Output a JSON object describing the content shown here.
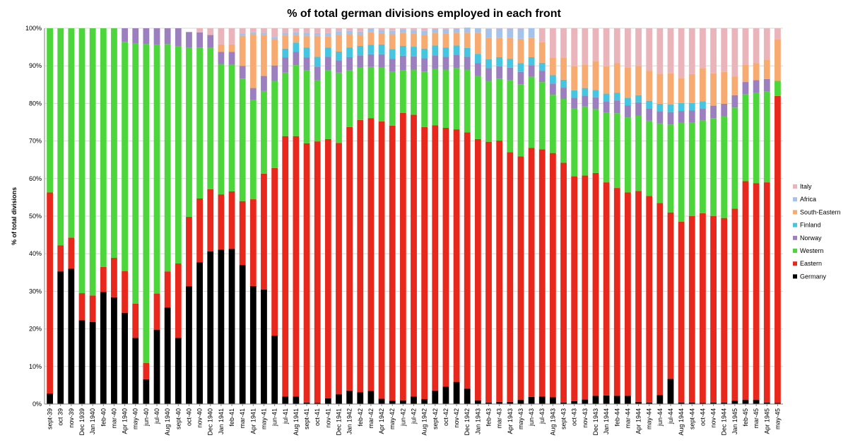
{
  "chart_data": {
    "type": "bar",
    "stacked": true,
    "normalized_percent": true,
    "title": "% of total german divisions employed in each front",
    "xlabel": "",
    "ylabel": "% of total divisions",
    "ylim": [
      0,
      100
    ],
    "yticks": [
      "0%",
      "10%",
      "20%",
      "30%",
      "40%",
      "50%",
      "60%",
      "70%",
      "80%",
      "90%",
      "100%"
    ],
    "grid": true,
    "legend_position": "right",
    "categories": [
      "sept-39",
      "oct 39",
      "nov-39",
      "Dec 1939",
      "Jan 1940",
      "feb-40",
      "mar-40",
      "Apr 1940",
      "may-40",
      "jun-40",
      "jul-40",
      "Aug 1940",
      "sept-40",
      "oct-40",
      "nov-40",
      "Dec 1940",
      "Jan 1941",
      "feb-41",
      "mar-41",
      "Apr 1941",
      "may-41",
      "jun-41",
      "jul-41",
      "Aug 1941",
      "sept-41",
      "oct-41",
      "nov-41",
      "Dec 1941",
      "Jan 1942",
      "feb-42",
      "mar-42",
      "Apr 1942",
      "may-42",
      "jun-42",
      "jul-42",
      "Aug 1942",
      "sept-42",
      "oct-42",
      "nov-42",
      "Dec 1942",
      "Jan 1943",
      "feb-43",
      "mar-43",
      "Apr 1943",
      "may-43",
      "jun-43",
      "jul-43",
      "Aug 1943",
      "sept-43",
      "oct-43",
      "nov-43",
      "Dec 1943",
      "Jan 1944",
      "feb-44",
      "mar-44",
      "Apr 1944",
      "may-44",
      "jun-44",
      "jul-44",
      "Aug 1944",
      "sept-44",
      "oct-44",
      "nov-44",
      "Dec 1944",
      "Jan 1945",
      "feb-45",
      "mar-45",
      "Apr 1945",
      "may-45"
    ],
    "series": [
      {
        "name": "Germany",
        "color": "#000000",
        "values": [
          2.8,
          35.3,
          36.0,
          22.3,
          21.8,
          29.8,
          28.4,
          24.3,
          17.6,
          6.6,
          19.8,
          25.7,
          17.6,
          31.3,
          37.7,
          40.6,
          41.1,
          41.3,
          37.0,
          31.4,
          30.5,
          18.2,
          2.0,
          2.0,
          0.4,
          0.3,
          1.5,
          2.6,
          3.6,
          3.1,
          3.5,
          1.4,
          0.9,
          1.0,
          2.0,
          1.3,
          3.6,
          4.6,
          5.9,
          4.1,
          1.0,
          0.4,
          0.6,
          0.6,
          1.1,
          1.9,
          2.0,
          1.8,
          0.4,
          0.8,
          1.2,
          2.2,
          2.3,
          2.2,
          2.2,
          0.6,
          0.4,
          2.4,
          6.7,
          0.4,
          0.4,
          0.3,
          0.4,
          0.4,
          0.9,
          1.1,
          1.1,
          0.4,
          0.3
        ]
      },
      {
        "name": "Eastern",
        "color": "#e8281c",
        "values": [
          53.5,
          6.9,
          8.3,
          7.2,
          7.1,
          6.7,
          10.5,
          11.1,
          9.1,
          4.3,
          9.6,
          9.6,
          19.8,
          18.5,
          17.0,
          16.6,
          14.7,
          15.3,
          17.0,
          23.1,
          30.8,
          44.6,
          69.3,
          69.3,
          69.0,
          69.6,
          69.0,
          66.9,
          70.1,
          72.5,
          72.6,
          73.8,
          73.2,
          76.5,
          75.0,
          72.4,
          70.6,
          68.9,
          67.2,
          68.2,
          69.5,
          69.4,
          69.5,
          66.4,
          64.8,
          66.3,
          65.8,
          65.0,
          63.8,
          59.8,
          59.6,
          59.3,
          56.7,
          55.3,
          54.1,
          56.1,
          55.0,
          51.1,
          44.3,
          48.1,
          49.6,
          50.5,
          49.6,
          49.1,
          51.1,
          58.2,
          57.7,
          58.6,
          81.7
        ]
      },
      {
        "name": "Western",
        "color": "#4cd63c",
        "values": [
          43.7,
          57.8,
          55.7,
          70.5,
          71.1,
          63.5,
          61.1,
          61.0,
          69.2,
          84.9,
          66.2,
          60.5,
          57.9,
          45.0,
          40.2,
          37.6,
          34.7,
          33.7,
          32.6,
          26.4,
          22.0,
          23.2,
          16.9,
          18.9,
          19.5,
          16.3,
          18.4,
          18.7,
          15.2,
          13.9,
          13.6,
          14.3,
          14.3,
          11.4,
          12.0,
          14.8,
          15.0,
          15.5,
          16.3,
          16.7,
          16.8,
          16.2,
          16.5,
          19.2,
          19.2,
          18.9,
          17.9,
          15.5,
          17.0,
          18.0,
          18.4,
          17.0,
          18.5,
          19.9,
          20.0,
          20.0,
          20.0,
          21.2,
          23.4,
          26.4,
          25.0,
          24.7,
          26.1,
          27.1,
          26.9,
          23.2,
          24.1,
          24.2,
          4.0
        ]
      },
      {
        "name": "Norway",
        "color": "#9c7fbe",
        "values": [
          0,
          0,
          0,
          0,
          0,
          0,
          0,
          3.6,
          4.1,
          4.2,
          4.4,
          4.2,
          4.7,
          4.2,
          4.0,
          3.4,
          3.2,
          3.4,
          3.4,
          3.2,
          4.0,
          4.1,
          4.0,
          3.5,
          3.3,
          3.6,
          3.5,
          3.3,
          3.4,
          3.3,
          3.4,
          3.6,
          3.5,
          3.8,
          3.5,
          3.5,
          3.6,
          3.4,
          3.6,
          3.4,
          3.4,
          3.4,
          3.3,
          3.3,
          3.3,
          3.1,
          3.0,
          3.0,
          3.0,
          2.9,
          2.9,
          3.1,
          3.1,
          3.4,
          3.2,
          3.6,
          3.3,
          3.2,
          3.3,
          3.1,
          3.1,
          3.2,
          3.3,
          3.3,
          3.3,
          3.2,
          3.3,
          3.3,
          0
        ]
      },
      {
        "name": "Finland",
        "color": "#45c5e0",
        "values": [
          0,
          0,
          0,
          0,
          0,
          0,
          0,
          0,
          0,
          0,
          0,
          0,
          0,
          0,
          0,
          0,
          0,
          0,
          0,
          0,
          0,
          0,
          2.4,
          2.5,
          2.7,
          2.6,
          2.5,
          2.3,
          2.6,
          2.5,
          2.5,
          2.6,
          2.6,
          2.6,
          2.6,
          2.6,
          2.6,
          2.5,
          2.4,
          2.4,
          2.5,
          2.4,
          2.4,
          2.4,
          2.3,
          2.1,
          2.1,
          2.2,
          2.1,
          2.0,
          2.0,
          2.0,
          2.0,
          2.0,
          2.0,
          1.9,
          2.0,
          2.0,
          2.0,
          2.1,
          2.0,
          1.9,
          0,
          0,
          0,
          0,
          0,
          0,
          0
        ]
      },
      {
        "name": "South-Eastern",
        "color": "#f7ab70",
        "values": [
          0,
          0,
          0,
          0,
          0,
          0,
          0,
          0,
          0,
          0,
          0,
          0,
          0,
          0,
          0,
          0,
          2.0,
          2.0,
          8.0,
          14.3,
          10.9,
          7.0,
          3.5,
          2.0,
          3.1,
          5.6,
          3.0,
          4.5,
          3.5,
          3.0,
          3.4,
          3.0,
          3.9,
          3.5,
          3.5,
          3.7,
          3.4,
          3.7,
          3.4,
          4.0,
          5.6,
          5.7,
          5.2,
          5.6,
          6.5,
          5.1,
          5.5,
          4.6,
          5.8,
          6.4,
          6.2,
          7.7,
          7.3,
          7.9,
          8.1,
          7.8,
          8.0,
          8.0,
          8.3,
          6.7,
          7.7,
          8.8,
          8.6,
          8.5,
          5.0,
          4.6,
          4.5,
          5.2,
          11.0
        ]
      },
      {
        "name": "Africa",
        "color": "#a5c3ea",
        "values": [
          0,
          0,
          0,
          0,
          0,
          0,
          0,
          0,
          0,
          0,
          0,
          0,
          0,
          0,
          0,
          0,
          0,
          0,
          0.5,
          0.5,
          0.6,
          0.6,
          0.7,
          0.7,
          0.8,
          0.7,
          0.8,
          0.9,
          0.9,
          0.8,
          0.9,
          0.8,
          0.9,
          0.9,
          0.9,
          1.0,
          1.0,
          1.1,
          1.1,
          1.2,
          1.2,
          2.4,
          2.4,
          2.4,
          2.7,
          2.6,
          0,
          0,
          0,
          0,
          0,
          0,
          0,
          0,
          0,
          0,
          0,
          0,
          0,
          0,
          0,
          0,
          0,
          0,
          0,
          0,
          0,
          0,
          0
        ]
      },
      {
        "name": "Italy",
        "color": "#eab4bb",
        "values": [
          0,
          0,
          0,
          0,
          0,
          0,
          0,
          0,
          0,
          0,
          0,
          0,
          0,
          0,
          1.1,
          1.8,
          4.3,
          4.3,
          1.5,
          1.1,
          1.2,
          2.3,
          1.2,
          1.1,
          1.2,
          1.3,
          1.3,
          0.8,
          0.7,
          0.9,
          0.1,
          0.5,
          0.7,
          0.3,
          0.5,
          0.7,
          0.2,
          0.3,
          0.1,
          0.2,
          0,
          0,
          0.1,
          0.1,
          0.1,
          0,
          3.7,
          7.9,
          7.9,
          10.1,
          9.7,
          8.7,
          10.1,
          9.3,
          10.4,
          10.0,
          11.3,
          12.1,
          12.0,
          13.2,
          12.2,
          10.6,
          12.0,
          11.6,
          12.8,
          9.7,
          9.3,
          8.3,
          3.0
        ]
      }
    ],
    "legend_order": [
      "Italy",
      "Africa",
      "South-Eastern",
      "Finland",
      "Norway",
      "Western",
      "Eastern",
      "Germany"
    ]
  }
}
